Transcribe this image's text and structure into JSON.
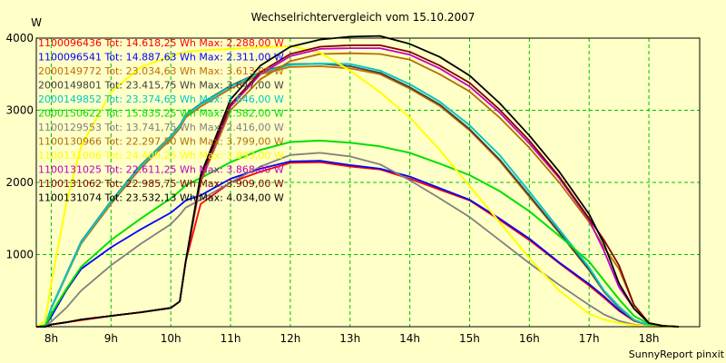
{
  "chart_data": {
    "type": "line",
    "title": "Wechselrichtervergleich vom 15.10.2007",
    "ylabel": "W",
    "xlabel": "",
    "xlim": [
      7.75,
      18.85
    ],
    "ylim": [
      0,
      4000
    ],
    "x_ticks": [
      8,
      9,
      10,
      11,
      12,
      13,
      14,
      15,
      16,
      17,
      18
    ],
    "x_tick_labels": [
      "8h",
      "9h",
      "10h",
      "11h",
      "12h",
      "13h",
      "14h",
      "15h",
      "16h",
      "17h",
      "18h"
    ],
    "y_ticks": [
      1000,
      2000,
      3000,
      4000
    ],
    "y_tick_labels": [
      "1000",
      "2000",
      "3000",
      "4000"
    ],
    "grid": true,
    "plot_background": "#ffffc8",
    "grid_color": "#00c000",
    "legend_position": "top-left",
    "x": [
      7.75,
      7.9,
      8.0,
      8.25,
      8.5,
      9.0,
      9.5,
      10.0,
      10.15,
      10.25,
      10.5,
      11.0,
      11.5,
      12.0,
      12.5,
      13.0,
      13.5,
      14.0,
      14.5,
      15.0,
      15.5,
      16.0,
      16.5,
      17.0,
      17.25,
      17.5,
      17.75,
      18.0,
      18.25,
      18.5
    ],
    "series": [
      {
        "name": "1100096436 Tot: 14.618,25 Wh Max: 2.288,00 W",
        "color": "#ff0000",
        "values": [
          0,
          0,
          30,
          60,
          90,
          150,
          200,
          260,
          350,
          900,
          1700,
          2000,
          2150,
          2270,
          2280,
          2220,
          2180,
          2050,
          1900,
          1750,
          1480,
          1200,
          880,
          570,
          400,
          220,
          80,
          20,
          5,
          0
        ]
      },
      {
        "name": "1100096541 Tot: 14.887,63 Wh Max: 2.311,00 W",
        "color": "#0000ff",
        "values": [
          0,
          10,
          140,
          500,
          800,
          1100,
          1350,
          1580,
          1680,
          1750,
          1820,
          2050,
          2190,
          2290,
          2300,
          2240,
          2190,
          2080,
          1920,
          1760,
          1500,
          1220,
          890,
          590,
          420,
          230,
          90,
          20,
          5,
          0
        ]
      },
      {
        "name": "2000149772 Tot: 23.034,63 Wh Max: 3.613,00 W",
        "color": "#c07000",
        "values": [
          0,
          20,
          250,
          700,
          1150,
          1700,
          2200,
          2600,
          2750,
          2900,
          3050,
          3300,
          3500,
          3600,
          3610,
          3580,
          3500,
          3300,
          3060,
          2720,
          2300,
          1800,
          1300,
          780,
          480,
          260,
          90,
          20,
          5,
          0
        ]
      },
      {
        "name": "2000149801 Tot: 23.415,75 Wh Max: 3.647,00 W",
        "color": "#404040",
        "values": [
          0,
          20,
          260,
          720,
          1180,
          1740,
          2240,
          2640,
          2790,
          2940,
          3090,
          3340,
          3530,
          3640,
          3645,
          3610,
          3520,
          3320,
          3080,
          2740,
          2320,
          1820,
          1310,
          790,
          490,
          270,
          90,
          20,
          5,
          0
        ]
      },
      {
        "name": "2000149852 Tot: 23.374,63 Wh Max: 3.646,00 W",
        "color": "#00c8c8",
        "values": [
          0,
          20,
          260,
          710,
          1170,
          1730,
          2230,
          2630,
          2780,
          2930,
          3080,
          3330,
          3520,
          3630,
          3646,
          3640,
          3550,
          3360,
          3120,
          2790,
          2380,
          1870,
          1350,
          820,
          500,
          280,
          95,
          20,
          5,
          0
        ]
      },
      {
        "name": "2000150622 Tot: 15.835,25 Wh Max: 2.582,00 W",
        "color": "#00e000",
        "values": [
          0,
          15,
          180,
          520,
          830,
          1200,
          1500,
          1780,
          1880,
          1960,
          2060,
          2280,
          2450,
          2560,
          2580,
          2550,
          2500,
          2410,
          2260,
          2100,
          1880,
          1600,
          1260,
          900,
          640,
          380,
          150,
          40,
          5,
          0
        ]
      },
      {
        "name": "1100129553 Tot: 13.741,75 Wh Max: 2.416,00 W",
        "color": "#808080",
        "values": [
          0,
          5,
          70,
          260,
          500,
          850,
          1150,
          1420,
          1550,
          1650,
          1760,
          2000,
          2220,
          2380,
          2410,
          2360,
          2250,
          2030,
          1780,
          1520,
          1200,
          880,
          580,
          300,
          170,
          80,
          30,
          5,
          0,
          0
        ]
      },
      {
        "name": "1100130966 Tot: 22.297,50 Wh Max: 3.799,00 W",
        "color": "#b07000",
        "values": [
          0,
          0,
          30,
          60,
          100,
          150,
          200,
          260,
          350,
          900,
          2000,
          3000,
          3430,
          3680,
          3780,
          3790,
          3780,
          3700,
          3500,
          3260,
          2900,
          2480,
          2000,
          1450,
          1100,
          800,
          300,
          50,
          10,
          0
        ]
      },
      {
        "name": "1100131006 Tot: 24.409,25 Wh Max: 3.893,00 W",
        "color": "#ffff00",
        "values": [
          0,
          80,
          600,
          1700,
          2500,
          3250,
          3600,
          3750,
          3790,
          3810,
          3830,
          3850,
          3870,
          3890,
          3800,
          3550,
          3250,
          2900,
          2450,
          1950,
          1450,
          950,
          500,
          180,
          100,
          50,
          20,
          5,
          0,
          0
        ]
      },
      {
        "name": "1100131025 Tot: 22.611,25 Wh Max: 3.868,00 W",
        "color": "#c000c0",
        "values": [
          0,
          0,
          30,
          60,
          100,
          150,
          200,
          260,
          350,
          900,
          2050,
          3050,
          3500,
          3750,
          3850,
          3860,
          3860,
          3770,
          3580,
          3330,
          2970,
          2540,
          2060,
          1480,
          1050,
          550,
          250,
          50,
          10,
          0
        ]
      },
      {
        "name": "1100131062 Tot: 22.985,75 Wh Max: 3.909,00 W",
        "color": "#800000",
        "values": [
          0,
          0,
          30,
          60,
          100,
          150,
          200,
          260,
          350,
          900,
          2080,
          3080,
          3530,
          3780,
          3880,
          3900,
          3900,
          3810,
          3620,
          3380,
          3010,
          2580,
          2080,
          1500,
          1200,
          850,
          300,
          50,
          10,
          0
        ]
      },
      {
        "name": "1100131074 Tot: 23.532,13 Wh Max: 4.034,00 W",
        "color": "#000000",
        "values": [
          0,
          0,
          30,
          60,
          100,
          150,
          200,
          260,
          350,
          900,
          2100,
          3150,
          3620,
          3880,
          3980,
          4020,
          4030,
          3920,
          3740,
          3480,
          3100,
          2650,
          2150,
          1560,
          1150,
          600,
          250,
          50,
          10,
          0
        ]
      }
    ]
  },
  "footer": {
    "credit": "SunnyReport pinxit"
  }
}
